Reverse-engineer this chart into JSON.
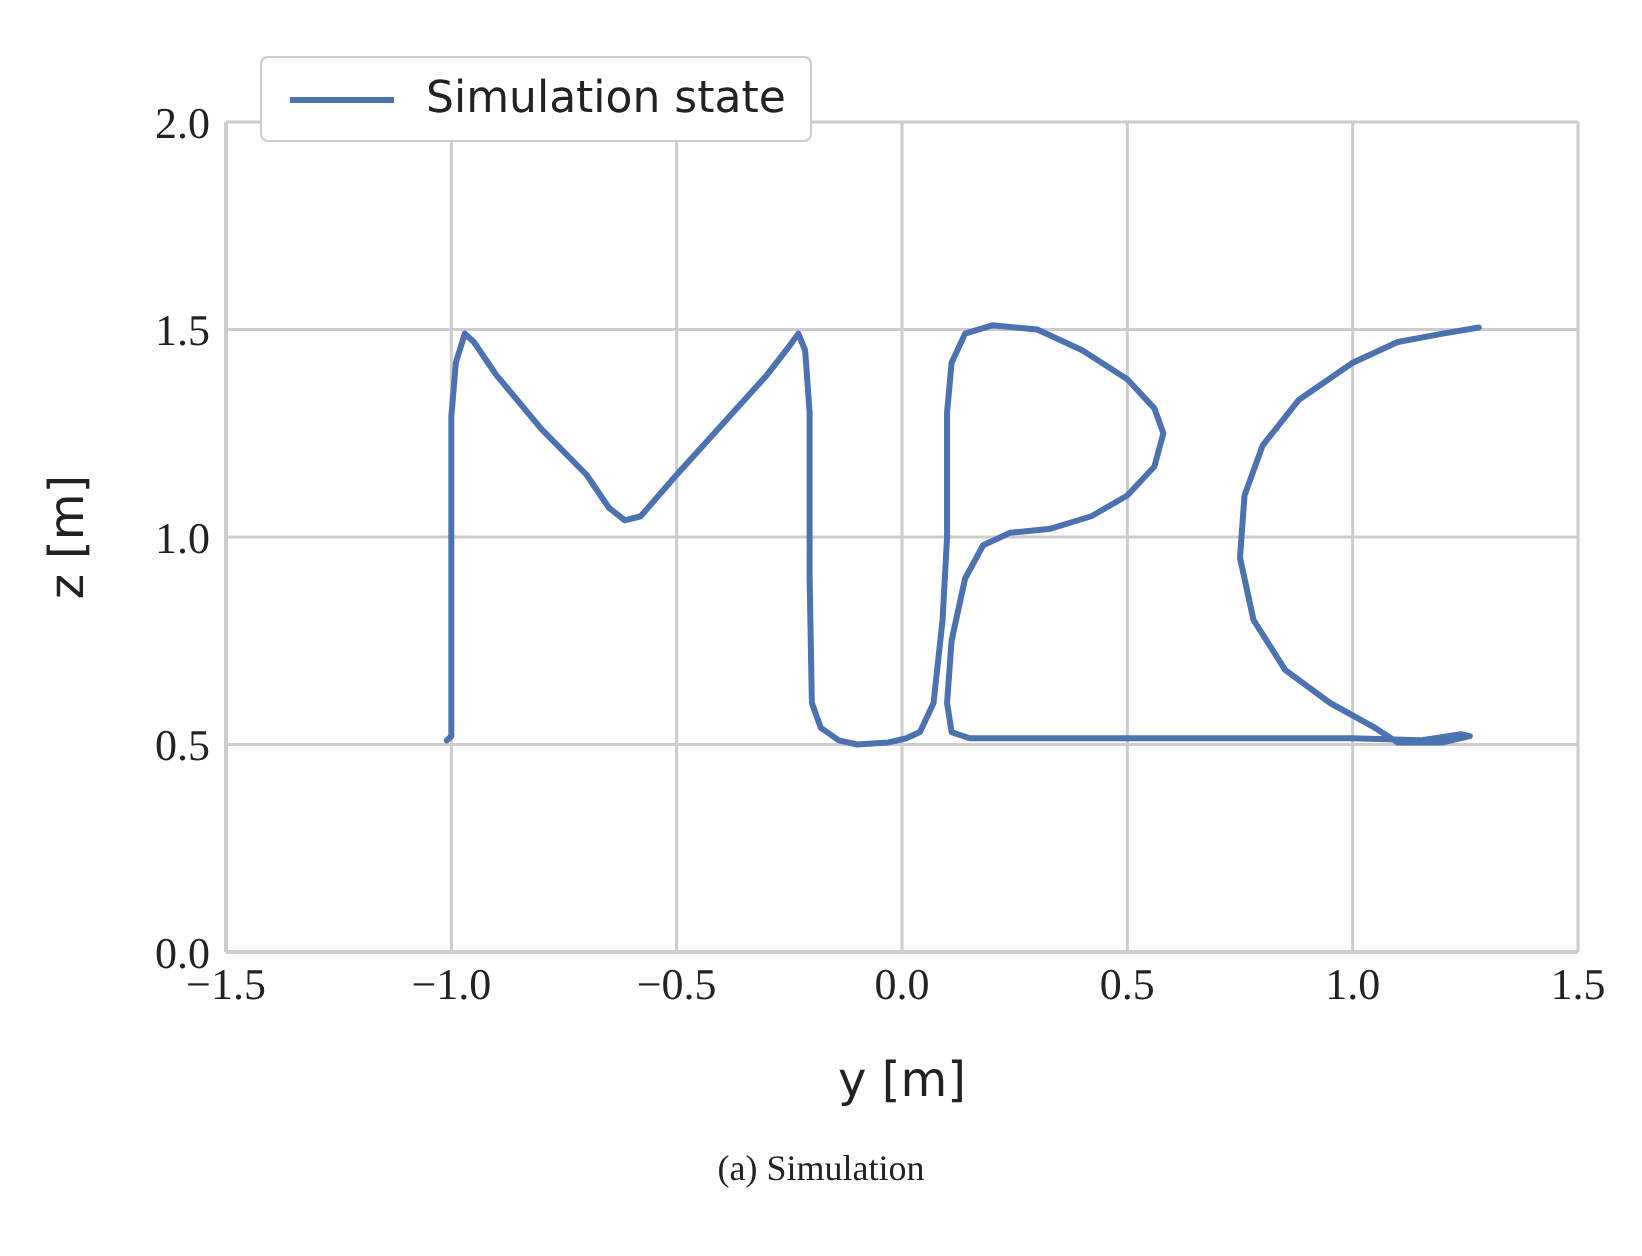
{
  "chart_data": {
    "type": "line",
    "xlabel": "y [m]",
    "ylabel": "z [m]",
    "annotations": [
      "(a) Simulation"
    ],
    "xlim": [
      -1.5,
      1.5
    ],
    "xticks": [
      {
        "value": -1.5,
        "label": "−1.5"
      },
      {
        "value": -1,
        "label": "−1.0"
      },
      {
        "value": -0.5,
        "label": "−0.5"
      },
      {
        "value": 0,
        "label": "0.0"
      },
      {
        "value": 0.5,
        "label": "0.5"
      },
      {
        "value": 1,
        "label": "1.0"
      },
      {
        "value": 1.5,
        "label": "1.5"
      }
    ],
    "ylim": [
      0,
      2
    ],
    "yticks": [
      {
        "value": 0,
        "label": "0.0"
      },
      {
        "value": 0.5,
        "label": "0.5"
      },
      {
        "value": 1,
        "label": "1.0"
      },
      {
        "value": 1.5,
        "label": "1.5"
      },
      {
        "value": 2,
        "label": "2.0"
      }
    ],
    "grid": true,
    "legend": "top left",
    "marker": "none",
    "line_style": "solid",
    "series": [
      {
        "name": "Simulation state",
        "color": "#4c72b0",
        "x": [
          -1.01,
          -1.0,
          -1.0,
          -1.0,
          -0.99,
          -0.97,
          -0.95,
          -0.9,
          -0.8,
          -0.7,
          -0.65,
          -0.615,
          -0.58,
          -0.5,
          -0.4,
          -0.3,
          -0.25,
          -0.23,
          -0.215,
          -0.205,
          -0.205,
          -0.2,
          -0.18,
          -0.14,
          -0.1,
          -0.03,
          0.01,
          0.04,
          0.07,
          0.09,
          0.1,
          0.1,
          0.11,
          0.14,
          0.2,
          0.3,
          0.4,
          0.5,
          0.56,
          0.58,
          0.56,
          0.5,
          0.42,
          0.33,
          0.24,
          0.18,
          0.14,
          0.11,
          0.1,
          0.11,
          0.15,
          0.4,
          0.7,
          1.0,
          1.15,
          1.24,
          1.26,
          1.2,
          1.1,
          1.05,
          0.95,
          0.85,
          0.78,
          0.75,
          0.76,
          0.8,
          0.88,
          1.0,
          1.1,
          1.2,
          1.28
        ],
        "values": [
          0.51,
          0.52,
          0.9,
          1.29,
          1.42,
          1.49,
          1.47,
          1.39,
          1.26,
          1.15,
          1.07,
          1.04,
          1.05,
          1.15,
          1.27,
          1.39,
          1.46,
          1.49,
          1.45,
          1.3,
          0.9,
          0.6,
          0.54,
          0.51,
          0.5,
          0.505,
          0.515,
          0.53,
          0.6,
          0.8,
          1.0,
          1.3,
          1.42,
          1.49,
          1.51,
          1.5,
          1.45,
          1.38,
          1.31,
          1.25,
          1.17,
          1.1,
          1.05,
          1.02,
          1.01,
          0.98,
          0.9,
          0.75,
          0.6,
          0.53,
          0.515,
          0.515,
          0.515,
          0.515,
          0.51,
          0.525,
          0.52,
          0.505,
          0.505,
          0.54,
          0.6,
          0.68,
          0.8,
          0.95,
          1.1,
          1.22,
          1.33,
          1.42,
          1.47,
          1.49,
          1.505
        ]
      }
    ]
  }
}
